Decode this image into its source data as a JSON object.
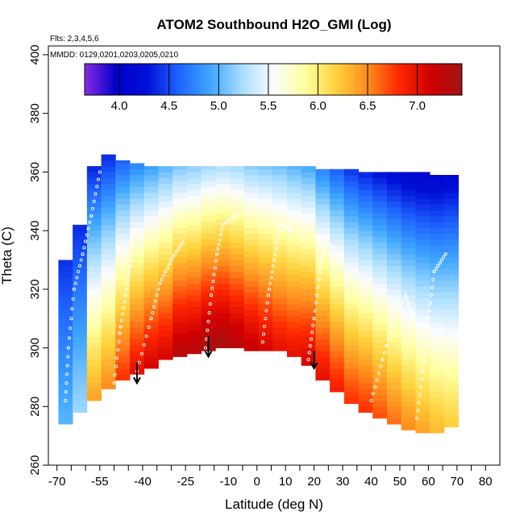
{
  "chart_data": {
    "type": "heatmap",
    "title": "ATOM2 Southbound H2O_GMI (Log)",
    "subtitle_flights": "Flts: 2,3,4,5,6",
    "subtitle_dates": "MMDD: 0129,0201,0203,0205,0210",
    "xlabel": "Latitude (deg N)",
    "ylabel": "Theta (C)",
    "xlim": [
      -73,
      85
    ],
    "ylim": [
      260,
      403
    ],
    "x_ticks": [
      -70,
      -55,
      -40,
      -25,
      -10,
      0,
      10,
      20,
      30,
      40,
      50,
      60,
      70,
      80
    ],
    "x_minor_ticks": [
      -65,
      -60,
      -50,
      -45,
      -35,
      -30,
      -20,
      -15,
      -5,
      5,
      15,
      25,
      35,
      45,
      55,
      65,
      75
    ],
    "y_ticks": [
      260,
      280,
      300,
      320,
      340,
      360,
      380,
      400
    ],
    "colorbar": {
      "min": 3.65,
      "max": 7.45,
      "ticks": [
        4.0,
        4.5,
        5.0,
        5.5,
        6.0,
        6.5,
        7.0
      ],
      "tick_labels": [
        "4.0",
        "4.5",
        "5.0",
        "5.5",
        "6.0",
        "6.5",
        "7.0"
      ],
      "colors": [
        "#8a2be2",
        "#0000c8",
        "#0010d8",
        "#1e64ff",
        "#3fa6ff",
        "#a8ddff",
        "#fbfcff",
        "#ffffa0",
        "#ffd23c",
        "#ff8c1e",
        "#ff2800",
        "#d00000",
        "#a01414"
      ]
    },
    "columns": [
      {
        "lat": -67,
        "bottom": 274,
        "top": 330,
        "peak": 5.0
      },
      {
        "lat": -62,
        "bottom": 278,
        "top": 342,
        "peak": 5.2
      },
      {
        "lat": -57,
        "bottom": 282,
        "top": 362,
        "peak": 6.4
      },
      {
        "lat": -52,
        "bottom": 286,
        "top": 366,
        "peak": 6.5
      },
      {
        "lat": -47,
        "bottom": 289,
        "top": 364,
        "peak": 6.8
      },
      {
        "lat": -42,
        "bottom": 291,
        "top": 363,
        "peak": 7.0
      },
      {
        "lat": -37,
        "bottom": 293,
        "top": 362,
        "peak": 7.1
      },
      {
        "lat": -32,
        "bottom": 296,
        "top": 362,
        "peak": 7.1
      },
      {
        "lat": -27,
        "bottom": 297,
        "top": 362,
        "peak": 7.3
      },
      {
        "lat": -22,
        "bottom": 298,
        "top": 362,
        "peak": 7.3
      },
      {
        "lat": -17,
        "bottom": 299,
        "top": 362,
        "peak": 7.4
      },
      {
        "lat": -12,
        "bottom": 300,
        "top": 362,
        "peak": 7.4
      },
      {
        "lat": -7,
        "bottom": 300,
        "top": 362,
        "peak": 7.3
      },
      {
        "lat": -2,
        "bottom": 299,
        "top": 362,
        "peak": 7.2
      },
      {
        "lat": 3,
        "bottom": 299,
        "top": 362,
        "peak": 7.1
      },
      {
        "lat": 8,
        "bottom": 299,
        "top": 362,
        "peak": 7.0
      },
      {
        "lat": 13,
        "bottom": 297,
        "top": 362,
        "peak": 7.0
      },
      {
        "lat": 18,
        "bottom": 294,
        "top": 362,
        "peak": 7.1
      },
      {
        "lat": 23,
        "bottom": 289,
        "top": 361,
        "peak": 7.0
      },
      {
        "lat": 28,
        "bottom": 285,
        "top": 361,
        "peak": 6.9
      },
      {
        "lat": 33,
        "bottom": 281,
        "top": 361,
        "peak": 6.8
      },
      {
        "lat": 38,
        "bottom": 278,
        "top": 360,
        "peak": 6.8
      },
      {
        "lat": 43,
        "bottom": 276,
        "top": 360,
        "peak": 6.7
      },
      {
        "lat": 48,
        "bottom": 274,
        "top": 360,
        "peak": 6.6
      },
      {
        "lat": 53,
        "bottom": 272,
        "top": 360,
        "peak": 6.5
      },
      {
        "lat": 58,
        "bottom": 271,
        "top": 360,
        "peak": 6.4
      },
      {
        "lat": 63,
        "bottom": 271,
        "top": 359,
        "peak": 6.3
      },
      {
        "lat": 68,
        "bottom": 273,
        "top": 359,
        "peak": 6.2
      }
    ],
    "value_model": {
      "scale_height_theta": 58,
      "gradient_span": 95,
      "min_value": 3.9
    },
    "flight_tracks": [
      [
        [
          -67,
          282
        ],
        [
          -66,
          300
        ],
        [
          -64,
          320
        ],
        [
          -61,
          332
        ],
        [
          -58,
          345
        ],
        [
          -55,
          360
        ]
      ],
      [
        [
          -50,
          288
        ],
        [
          -48,
          305
        ],
        [
          -46,
          318
        ],
        [
          -44,
          330
        ],
        [
          -43,
          340
        ]
      ],
      [
        [
          -42,
          292
        ],
        [
          -37,
          310
        ],
        [
          -34,
          322
        ],
        [
          -30,
          330
        ],
        [
          -26,
          336
        ]
      ],
      [
        [
          -18,
          300
        ],
        [
          -16,
          318
        ],
        [
          -14,
          332
        ],
        [
          -12,
          342
        ],
        [
          -6,
          346
        ]
      ],
      [
        [
          2,
          302
        ],
        [
          4,
          318
        ],
        [
          6,
          330
        ],
        [
          8,
          342
        ],
        [
          12,
          340
        ]
      ],
      [
        [
          18,
          296
        ],
        [
          20,
          310
        ],
        [
          22,
          326
        ],
        [
          24,
          336
        ],
        [
          28,
          334
        ]
      ],
      [
        [
          40,
          282
        ],
        [
          44,
          296
        ],
        [
          48,
          310
        ],
        [
          52,
          318
        ],
        [
          54,
          312
        ]
      ],
      [
        [
          56,
          276
        ],
        [
          58,
          292
        ],
        [
          60,
          310
        ],
        [
          62,
          326
        ],
        [
          66,
          332
        ]
      ]
    ],
    "arrows": [
      {
        "lat": -42,
        "theta_from": 295,
        "theta_to": 288
      },
      {
        "lat": -17,
        "theta_from": 304,
        "theta_to": 297
      },
      {
        "lat": 20,
        "theta_from": 299,
        "theta_to": 293
      }
    ]
  }
}
